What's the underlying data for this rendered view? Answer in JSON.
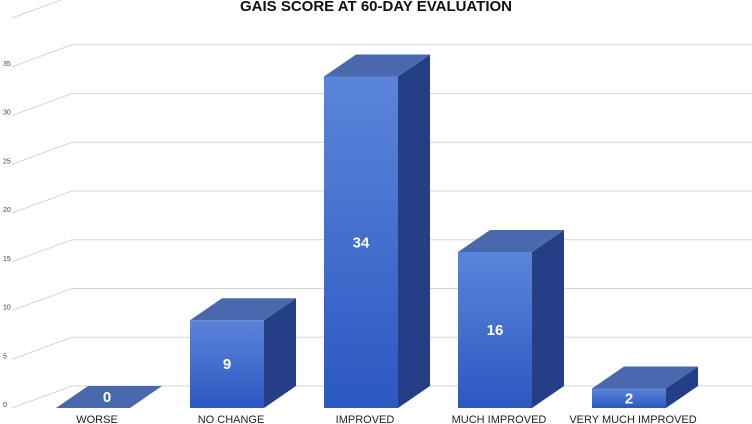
{
  "chart_data": {
    "type": "bar",
    "title": "GAIS SCORE AT 60-DAY EVALUATION",
    "categories": [
      "WORSE",
      "NO CHANGE",
      "IMPROVED",
      "MUCH IMPROVED",
      "VERY MUCH IMPROVED"
    ],
    "values": [
      0,
      9,
      34,
      16,
      2
    ],
    "value_labels": [
      "0",
      "9",
      "34",
      "16",
      "2"
    ],
    "yticks": [
      "0",
      "5",
      "10",
      "15",
      "20",
      "25",
      "30",
      "35"
    ],
    "ylim": [
      0,
      40
    ],
    "grid": true,
    "legend": "none",
    "three_d": true,
    "colors": {
      "front_top": "#5b85d9",
      "front_bottom": "#2b58c2",
      "side": "#243f86",
      "top": "#4a68ad",
      "grid": "#d6d6d6"
    }
  }
}
